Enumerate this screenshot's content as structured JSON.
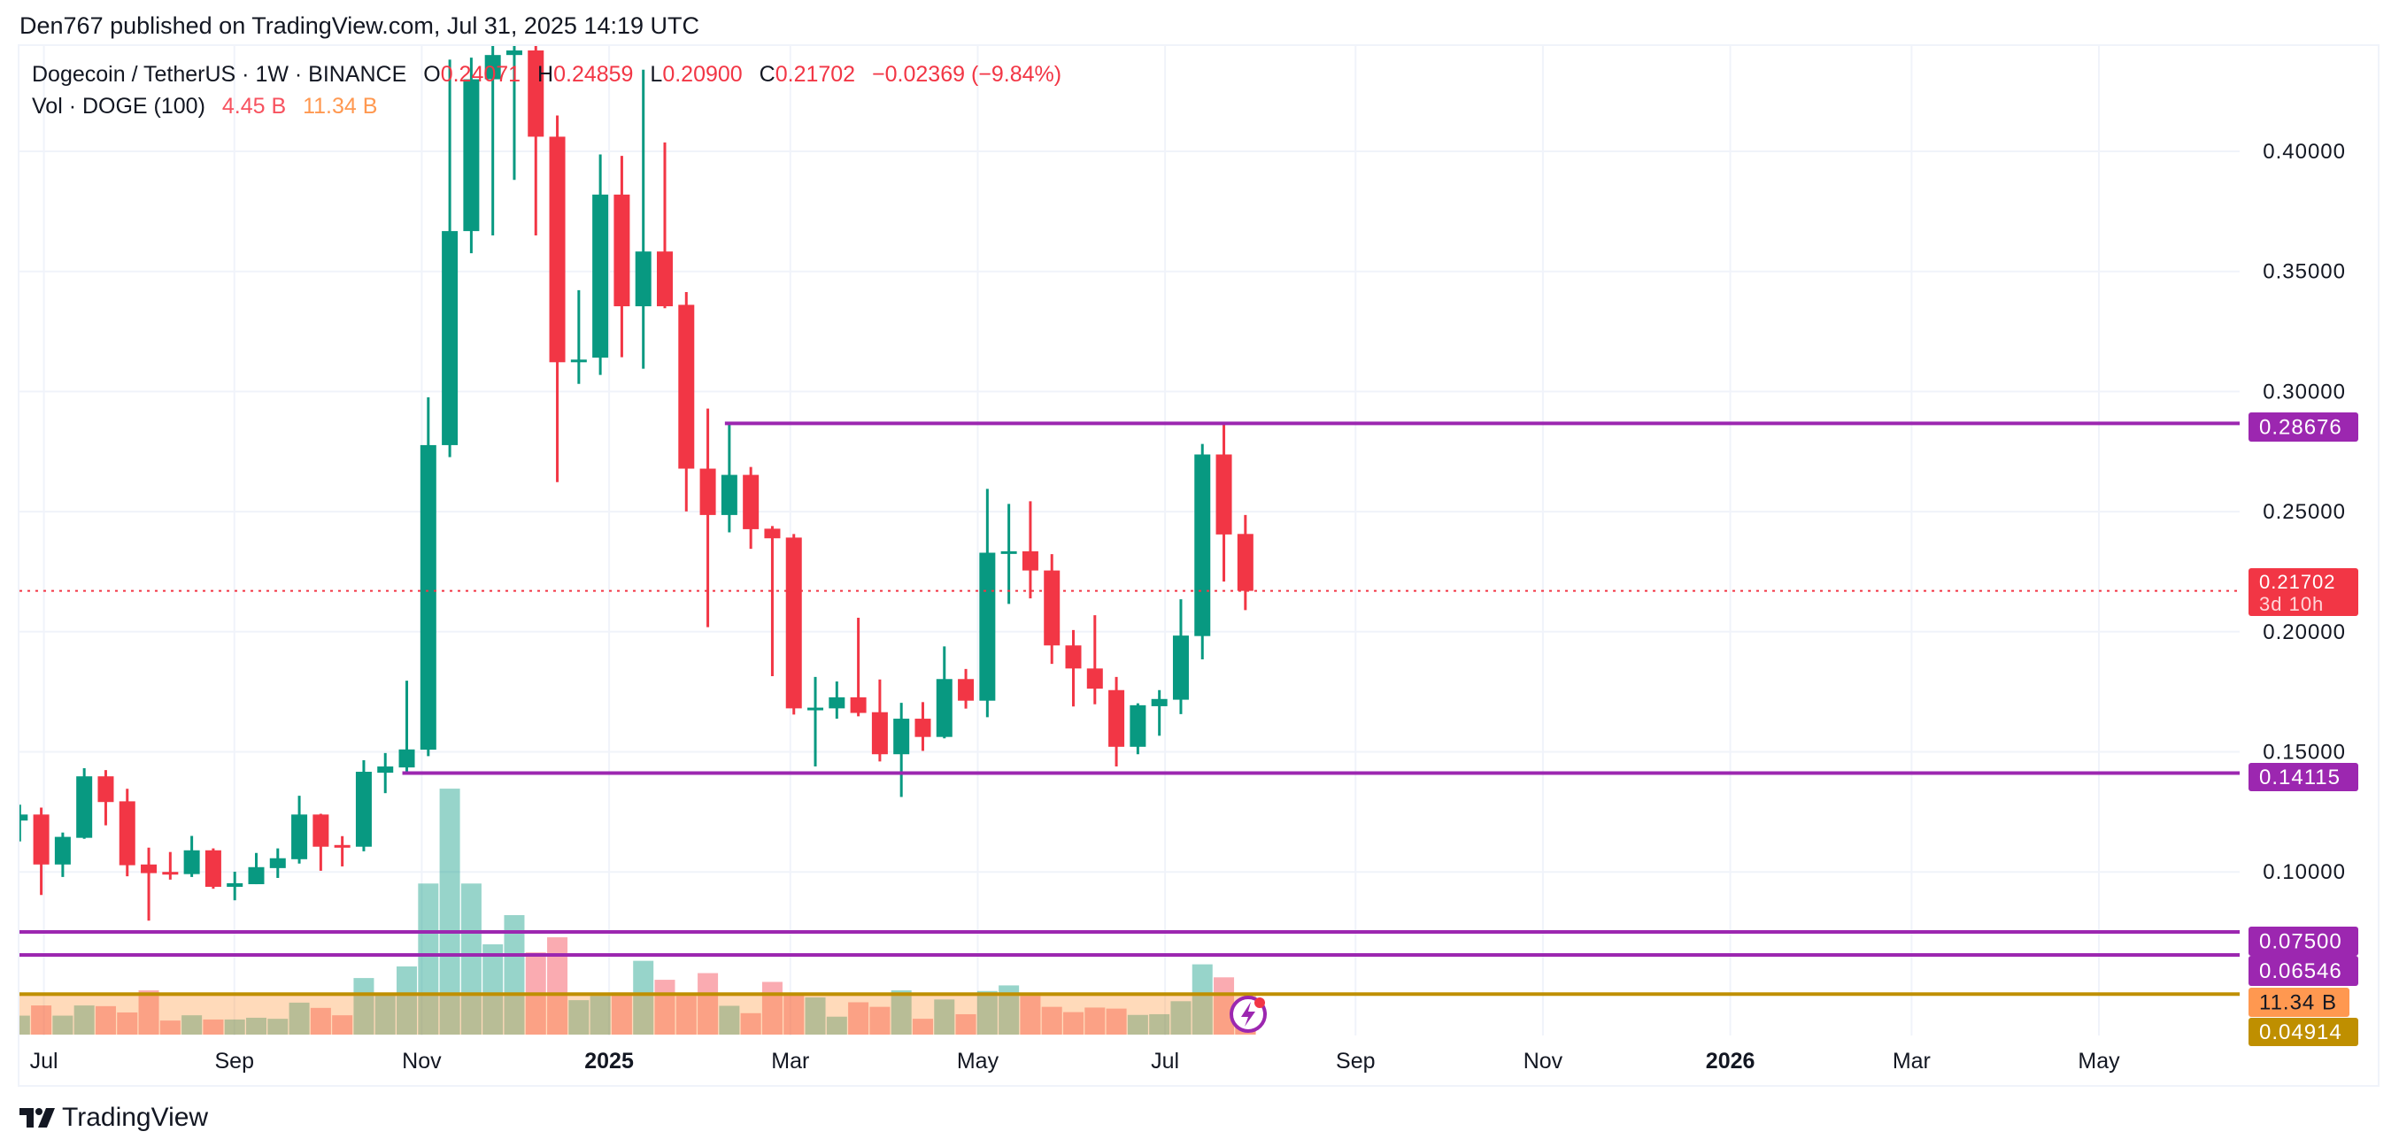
{
  "publisher_line": "Den767 published on TradingView.com, Jul 31, 2025 14:19 UTC",
  "legend": {
    "symbol": "Dogecoin / TetherUS · 1W · BINANCE",
    "o_label": "O",
    "o": "0.24071",
    "h_label": "H",
    "h": "0.24859",
    "l_label": "L",
    "l": "0.20900",
    "c_label": "C",
    "c": "0.21702",
    "change": "−0.02369 (−9.84%)",
    "vol_label": "Vol · DOGE (100)",
    "vol_value": "4.45 B",
    "vol_ma": "11.34 B"
  },
  "logo_text": "TradingView",
  "colors": {
    "up": "#089981",
    "down": "#F23645",
    "drawn_line": "#9C27B0",
    "gold_line": "#BF8F00",
    "vol_ma": "#FF9850"
  },
  "icons": {
    "logo": "tradingview-logo-icon",
    "alert": "lightning-icon"
  },
  "chart_data": {
    "type": "candlestick",
    "interval": "1W",
    "yticks": [
      "0.40000",
      "0.35000",
      "0.30000",
      "0.25000",
      "0.20000",
      "0.15000",
      "0.10000"
    ],
    "ytick_values": [
      0.4,
      0.35,
      0.3,
      0.25,
      0.2,
      0.15,
      0.1
    ],
    "xticks": [
      {
        "label": "Jul",
        "date": "2024-07-01",
        "bold": false
      },
      {
        "label": "Sep",
        "date": "2024-09-01",
        "bold": false
      },
      {
        "label": "Nov",
        "date": "2024-11-01",
        "bold": false
      },
      {
        "label": "2025",
        "date": "2025-01-01",
        "bold": true
      },
      {
        "label": "Mar",
        "date": "2025-03-01",
        "bold": false
      },
      {
        "label": "May",
        "date": "2025-05-01",
        "bold": false
      },
      {
        "label": "Jul",
        "date": "2025-07-01",
        "bold": false
      },
      {
        "label": "Sep",
        "date": "2025-09-01",
        "bold": false
      },
      {
        "label": "Nov",
        "date": "2025-11-01",
        "bold": false
      },
      {
        "label": "2026",
        "date": "2026-01-01",
        "bold": true
      },
      {
        "label": "Mar",
        "date": "2026-03-01",
        "bold": false
      },
      {
        "label": "May",
        "date": "2026-05-01",
        "bold": false
      }
    ],
    "candles": [
      [
        "2024-06-24",
        0.1214,
        0.128,
        0.1127,
        0.1239,
        5.4
      ],
      [
        "2024-07-01",
        0.1239,
        0.1268,
        0.0904,
        0.1031,
        8.3
      ],
      [
        "2024-07-08",
        0.1031,
        0.1164,
        0.0979,
        0.1146,
        5.4
      ],
      [
        "2024-07-15",
        0.1142,
        0.1432,
        0.1138,
        0.1398,
        8.3
      ],
      [
        "2024-07-22",
        0.1398,
        0.1424,
        0.1194,
        0.1291,
        8.1
      ],
      [
        "2024-07-29",
        0.1294,
        0.1346,
        0.0982,
        0.1028,
        6.3
      ],
      [
        "2024-08-05",
        0.1031,
        0.1101,
        0.0797,
        0.0995,
        12.6
      ],
      [
        "2024-08-12",
        0.1,
        0.1083,
        0.0968,
        0.0996,
        4.0
      ],
      [
        "2024-08-19",
        0.0991,
        0.115,
        0.0979,
        0.109,
        5.5
      ],
      [
        "2024-08-26",
        0.109,
        0.1098,
        0.093,
        0.0938,
        4.3
      ],
      [
        "2024-09-02",
        0.0938,
        0.1001,
        0.0882,
        0.0953,
        4.3
      ],
      [
        "2024-09-09",
        0.0949,
        0.1079,
        0.0949,
        0.102,
        4.8
      ],
      [
        "2024-09-16",
        0.1016,
        0.1098,
        0.0975,
        0.1057,
        4.5
      ],
      [
        "2024-09-23",
        0.1053,
        0.1317,
        0.1035,
        0.1239,
        9.1
      ],
      [
        "2024-09-30",
        0.1239,
        0.1242,
        0.1005,
        0.1105,
        7.6
      ],
      [
        "2024-10-07",
        0.1112,
        0.1149,
        0.1023,
        0.1105,
        5.5
      ],
      [
        "2024-10-14",
        0.1105,
        0.1465,
        0.1086,
        0.1417,
        16.1
      ],
      [
        "2024-10-21",
        0.1413,
        0.1495,
        0.1328,
        0.1439,
        11.1
      ],
      [
        "2024-10-28",
        0.1435,
        0.1796,
        0.1406,
        0.151,
        19.4
      ],
      [
        "2024-11-04",
        0.1509,
        0.2976,
        0.1482,
        0.2777,
        43.0
      ],
      [
        "2024-11-11",
        0.2777,
        0.4382,
        0.2727,
        0.3668,
        70.0
      ],
      [
        "2024-11-18",
        0.3668,
        0.439,
        0.3576,
        0.43,
        43.0
      ],
      [
        "2024-11-25",
        0.43,
        0.46,
        0.365,
        0.4401,
        25.7
      ],
      [
        "2024-12-02",
        0.4401,
        0.48,
        0.3881,
        0.442,
        34.0
      ],
      [
        "2024-12-09",
        0.442,
        0.4843,
        0.365,
        0.4061,
        23.4
      ],
      [
        "2024-12-16",
        0.4061,
        0.4149,
        0.2623,
        0.3122,
        27.7
      ],
      [
        "2024-12-23",
        0.3122,
        0.3422,
        0.3032,
        0.3133,
        9.8
      ],
      [
        "2024-12-30",
        0.3141,
        0.3987,
        0.3069,
        0.382,
        11.0
      ],
      [
        "2025-01-06",
        0.382,
        0.3981,
        0.3143,
        0.3355,
        12.0
      ],
      [
        "2025-01-13",
        0.3355,
        0.434,
        0.3095,
        0.3583,
        21.0
      ],
      [
        "2025-01-20",
        0.3583,
        0.4037,
        0.3347,
        0.3355,
        15.6
      ],
      [
        "2025-01-27",
        0.3361,
        0.3414,
        0.2501,
        0.2679,
        11.0
      ],
      [
        "2025-02-03",
        0.2679,
        0.2929,
        0.2019,
        0.2486,
        17.5
      ],
      [
        "2025-02-10",
        0.2486,
        0.2866,
        0.2414,
        0.2653,
        8.2
      ],
      [
        "2025-02-17",
        0.2653,
        0.2686,
        0.2345,
        0.2427,
        6.1
      ],
      [
        "2025-02-24",
        0.2429,
        0.244,
        0.1815,
        0.2389,
        15.0
      ],
      [
        "2025-03-03",
        0.2392,
        0.2407,
        0.1655,
        0.1681,
        11.8
      ],
      [
        "2025-03-10",
        0.1681,
        0.1812,
        0.1439,
        0.1684,
        10.6
      ],
      [
        "2025-03-17",
        0.1681,
        0.1793,
        0.1638,
        0.1727,
        5.1
      ],
      [
        "2025-03-24",
        0.1727,
        0.2058,
        0.1648,
        0.1662,
        9.2
      ],
      [
        "2025-03-31",
        0.1665,
        0.1801,
        0.146,
        0.149,
        7.9
      ],
      [
        "2025-04-07",
        0.149,
        0.1704,
        0.1312,
        0.1638,
        12.6
      ],
      [
        "2025-04-14",
        0.1638,
        0.1707,
        0.1504,
        0.1562,
        4.5
      ],
      [
        "2025-04-21",
        0.1562,
        0.1939,
        0.1556,
        0.1803,
        10.0
      ],
      [
        "2025-04-28",
        0.1803,
        0.1845,
        0.168,
        0.1713,
        5.8
      ],
      [
        "2025-05-05",
        0.1713,
        0.2595,
        0.1644,
        0.2329,
        12.4
      ],
      [
        "2025-05-12",
        0.2326,
        0.2532,
        0.2116,
        0.2335,
        14.0
      ],
      [
        "2025-05-19",
        0.2335,
        0.2543,
        0.2139,
        0.2255,
        11.0
      ],
      [
        "2025-05-26",
        0.2255,
        0.2323,
        0.1866,
        0.1943,
        7.9
      ],
      [
        "2025-06-02",
        0.1943,
        0.2007,
        0.1689,
        0.1847,
        6.4
      ],
      [
        "2025-06-09",
        0.1847,
        0.2069,
        0.1698,
        0.1763,
        7.7
      ],
      [
        "2025-06-16",
        0.1757,
        0.1812,
        0.1439,
        0.1521,
        7.4
      ],
      [
        "2025-06-23",
        0.1521,
        0.1702,
        0.149,
        0.1694,
        5.6
      ],
      [
        "2025-06-30",
        0.169,
        0.1757,
        0.1567,
        0.172,
        5.8
      ],
      [
        "2025-07-07",
        0.1717,
        0.2135,
        0.1657,
        0.1984,
        9.5
      ],
      [
        "2025-07-14",
        0.1982,
        0.2782,
        0.1885,
        0.2738,
        20.0
      ],
      [
        "2025-07-21",
        0.2738,
        0.2868,
        0.2209,
        0.2405,
        16.3
      ],
      [
        "2025-07-28",
        0.24071,
        0.24859,
        0.209,
        0.21702,
        4.45
      ]
    ],
    "candle_fields": [
      "date",
      "open",
      "high",
      "low",
      "close",
      "volume_billions"
    ],
    "volume_ma_billions": 11.34,
    "current_price": {
      "value": 0.21702,
      "label": "0.21702",
      "countdown": "3d 10h"
    },
    "horizontal_lines": [
      {
        "value": 0.28676,
        "label": "0.28676",
        "color": "#9C27B0",
        "from_date": "2025-02-10"
      },
      {
        "value": 0.14115,
        "label": "0.14115",
        "color": "#9C27B0",
        "from_date": "2024-10-28"
      },
      {
        "value": 0.075,
        "label": "0.07500",
        "color": "#9C27B0",
        "from_date": null
      },
      {
        "value": 0.06546,
        "label": "0.06546",
        "color": "#9C27B0",
        "from_date": null
      },
      {
        "value": 0.04914,
        "label": "0.04914",
        "color": "#BF8F00",
        "from_date": null
      }
    ],
    "volume_ma_label": "11.34 B",
    "grid": true
  }
}
